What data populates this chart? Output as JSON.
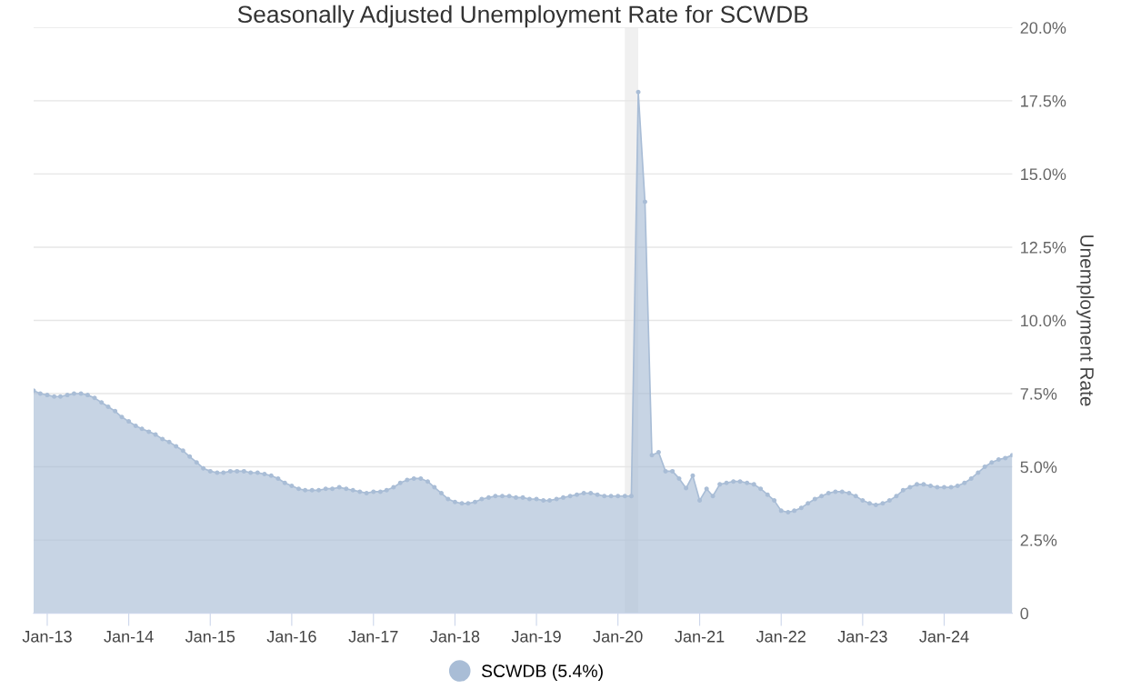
{
  "chart_data": {
    "type": "area",
    "title": "Seasonally Adjusted Unemployment Rate for SCWDB",
    "ylabel": "Unemployment Rate",
    "x": [
      "2012-11",
      "2012-12",
      "2013-01",
      "2013-02",
      "2013-03",
      "2013-04",
      "2013-05",
      "2013-06",
      "2013-07",
      "2013-08",
      "2013-09",
      "2013-10",
      "2013-11",
      "2013-12",
      "2014-01",
      "2014-02",
      "2014-03",
      "2014-04",
      "2014-05",
      "2014-06",
      "2014-07",
      "2014-08",
      "2014-09",
      "2014-10",
      "2014-11",
      "2014-12",
      "2015-01",
      "2015-02",
      "2015-03",
      "2015-04",
      "2015-05",
      "2015-06",
      "2015-07",
      "2015-08",
      "2015-09",
      "2015-10",
      "2015-11",
      "2015-12",
      "2016-01",
      "2016-02",
      "2016-03",
      "2016-04",
      "2016-05",
      "2016-06",
      "2016-07",
      "2016-08",
      "2016-09",
      "2016-10",
      "2016-11",
      "2016-12",
      "2017-01",
      "2017-02",
      "2017-03",
      "2017-04",
      "2017-05",
      "2017-06",
      "2017-07",
      "2017-08",
      "2017-09",
      "2017-10",
      "2017-11",
      "2017-12",
      "2018-01",
      "2018-02",
      "2018-03",
      "2018-04",
      "2018-05",
      "2018-06",
      "2018-07",
      "2018-08",
      "2018-09",
      "2018-10",
      "2018-11",
      "2018-12",
      "2019-01",
      "2019-02",
      "2019-03",
      "2019-04",
      "2019-05",
      "2019-06",
      "2019-07",
      "2019-08",
      "2019-09",
      "2019-10",
      "2019-11",
      "2019-12",
      "2020-01",
      "2020-02",
      "2020-03",
      "2020-04",
      "2020-05",
      "2020-06",
      "2020-07",
      "2020-08",
      "2020-09",
      "2020-10",
      "2020-11",
      "2020-12",
      "2021-01",
      "2021-02",
      "2021-03",
      "2021-04",
      "2021-05",
      "2021-06",
      "2021-07",
      "2021-08",
      "2021-09",
      "2021-10",
      "2021-11",
      "2021-12",
      "2022-01",
      "2022-02",
      "2022-03",
      "2022-04",
      "2022-05",
      "2022-06",
      "2022-07",
      "2022-08",
      "2022-09",
      "2022-10",
      "2022-11",
      "2022-12",
      "2023-01",
      "2023-02",
      "2023-03",
      "2023-04",
      "2023-05",
      "2023-06",
      "2023-07",
      "2023-08",
      "2023-09",
      "2023-10",
      "2023-11",
      "2023-12",
      "2024-01",
      "2024-02",
      "2024-03",
      "2024-04",
      "2024-05",
      "2024-06",
      "2024-07",
      "2024-08",
      "2024-09",
      "2024-10",
      "2024-11"
    ],
    "series": [
      {
        "name": "SCWDB (5.4%)",
        "color": "#a9bdd6",
        "values": [
          7.6,
          7.5,
          7.45,
          7.4,
          7.4,
          7.45,
          7.5,
          7.5,
          7.45,
          7.35,
          7.2,
          7.05,
          6.9,
          6.7,
          6.55,
          6.4,
          6.3,
          6.2,
          6.1,
          5.95,
          5.85,
          5.7,
          5.55,
          5.35,
          5.15,
          4.95,
          4.85,
          4.8,
          4.8,
          4.85,
          4.85,
          4.85,
          4.8,
          4.8,
          4.75,
          4.7,
          4.6,
          4.45,
          4.35,
          4.25,
          4.2,
          4.2,
          4.2,
          4.25,
          4.25,
          4.3,
          4.25,
          4.2,
          4.15,
          4.1,
          4.15,
          4.15,
          4.2,
          4.3,
          4.45,
          4.55,
          4.6,
          4.6,
          4.5,
          4.3,
          4.1,
          3.9,
          3.8,
          3.75,
          3.75,
          3.8,
          3.9,
          3.95,
          4.0,
          4.0,
          4.0,
          3.95,
          3.95,
          3.9,
          3.9,
          3.85,
          3.85,
          3.9,
          3.95,
          4.0,
          4.05,
          4.1,
          4.1,
          4.05,
          4.0,
          4.0,
          4.0,
          4.0,
          4.0,
          17.8,
          14.05,
          5.4,
          5.5,
          4.85,
          4.85,
          4.6,
          4.27,
          4.7,
          3.85,
          4.25,
          4.0,
          4.4,
          4.45,
          4.5,
          4.5,
          4.45,
          4.4,
          4.25,
          4.05,
          3.85,
          3.5,
          3.45,
          3.5,
          3.6,
          3.75,
          3.9,
          4.0,
          4.1,
          4.15,
          4.15,
          4.1,
          4.0,
          3.85,
          3.75,
          3.7,
          3.75,
          3.85,
          4.0,
          4.2,
          4.3,
          4.4,
          4.4,
          4.35,
          4.3,
          4.3,
          4.3,
          4.35,
          4.45,
          4.6,
          4.8,
          5.0,
          5.15,
          5.25,
          5.3,
          5.4
        ]
      }
    ],
    "xlim": [
      "2012-11",
      "2024-11"
    ],
    "xticks": [
      {
        "value": "2013-01",
        "label": "Jan-13"
      },
      {
        "value": "2014-01",
        "label": "Jan-14"
      },
      {
        "value": "2015-01",
        "label": "Jan-15"
      },
      {
        "value": "2016-01",
        "label": "Jan-16"
      },
      {
        "value": "2017-01",
        "label": "Jan-17"
      },
      {
        "value": "2018-01",
        "label": "Jan-18"
      },
      {
        "value": "2019-01",
        "label": "Jan-19"
      },
      {
        "value": "2020-01",
        "label": "Jan-20"
      },
      {
        "value": "2021-01",
        "label": "Jan-21"
      },
      {
        "value": "2022-01",
        "label": "Jan-22"
      },
      {
        "value": "2023-01",
        "label": "Jan-23"
      },
      {
        "value": "2024-01",
        "label": "Jan-24"
      }
    ],
    "ylim": [
      0,
      20
    ],
    "yticks": [
      0,
      {
        "value": 2.5,
        "label": "2.5%"
      },
      {
        "value": 5,
        "label": "5.0%"
      },
      {
        "value": 7.5,
        "label": "7.5%"
      },
      {
        "value": 10,
        "label": "10.0%"
      },
      {
        "value": 12.5,
        "label": "12.5%"
      },
      {
        "value": 15,
        "label": "15.0%"
      },
      {
        "value": 17.5,
        "label": "17.5%"
      },
      {
        "value": 20,
        "label": "20.0%"
      }
    ],
    "bands": [
      {
        "axis": "x",
        "from": "2020-02",
        "to": "2020-04",
        "color": "#f0f0f0"
      }
    ],
    "grid": "y",
    "legend": "bottom",
    "marker": "circle",
    "line_style": "solid"
  }
}
